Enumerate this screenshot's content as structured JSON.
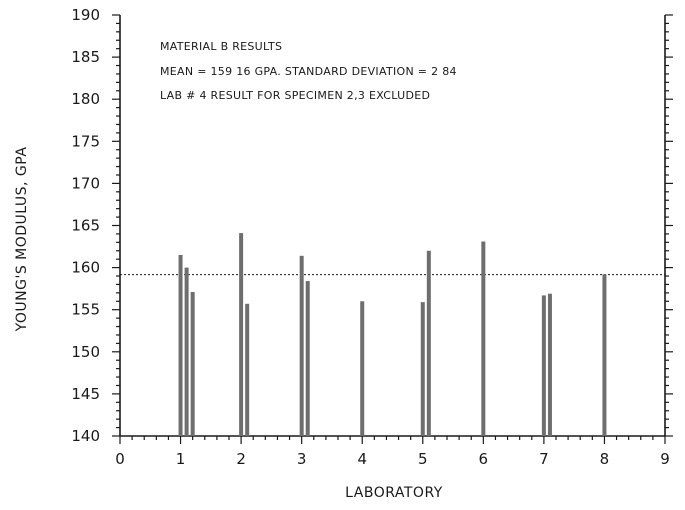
{
  "chart_data": {
    "type": "bar",
    "xlabel": "LABORATORY",
    "ylabel": "YOUNG'S MODULUS, GPA",
    "xlim": [
      0,
      9
    ],
    "ylim": [
      140,
      190
    ],
    "x_ticks": [
      0,
      1,
      2,
      3,
      4,
      5,
      6,
      7,
      8,
      9
    ],
    "x_tick_labels": [
      "0",
      "1",
      "2",
      "3",
      "4",
      "5",
      "6",
      "7",
      "8",
      "9"
    ],
    "y_ticks": [
      140,
      145,
      150,
      155,
      160,
      165,
      170,
      175,
      180,
      185,
      190
    ],
    "y_tick_labels": [
      "140",
      "145",
      "150",
      "155",
      "160",
      "165",
      "170",
      "175",
      "180",
      "185",
      "190"
    ],
    "mean_line": 159.16,
    "annotations": [
      "MATERIAL B RESULTS",
      "MEAN = 159 16 GPA.  STANDARD DEVIATION = 2 84",
      "LAB # 4 RESULT FOR SPECIMEN 2,3 EXCLUDED"
    ],
    "points": [
      {
        "x": 1.0,
        "y": 161.5
      },
      {
        "x": 1.1,
        "y": 160.0
      },
      {
        "x": 1.2,
        "y": 157.1
      },
      {
        "x": 2.0,
        "y": 164.1
      },
      {
        "x": 2.1,
        "y": 155.7
      },
      {
        "x": 3.0,
        "y": 161.4
      },
      {
        "x": 3.1,
        "y": 158.4
      },
      {
        "x": 4.0,
        "y": 156.0
      },
      {
        "x": 5.0,
        "y": 155.9
      },
      {
        "x": 5.1,
        "y": 162.0
      },
      {
        "x": 6.0,
        "y": 163.1
      },
      {
        "x": 7.0,
        "y": 156.7
      },
      {
        "x": 7.1,
        "y": 156.9
      },
      {
        "x": 8.0,
        "y": 159.2
      }
    ],
    "grid": false,
    "bar_color": "#6e6e6e",
    "axis_color": "#1a1a1a"
  }
}
